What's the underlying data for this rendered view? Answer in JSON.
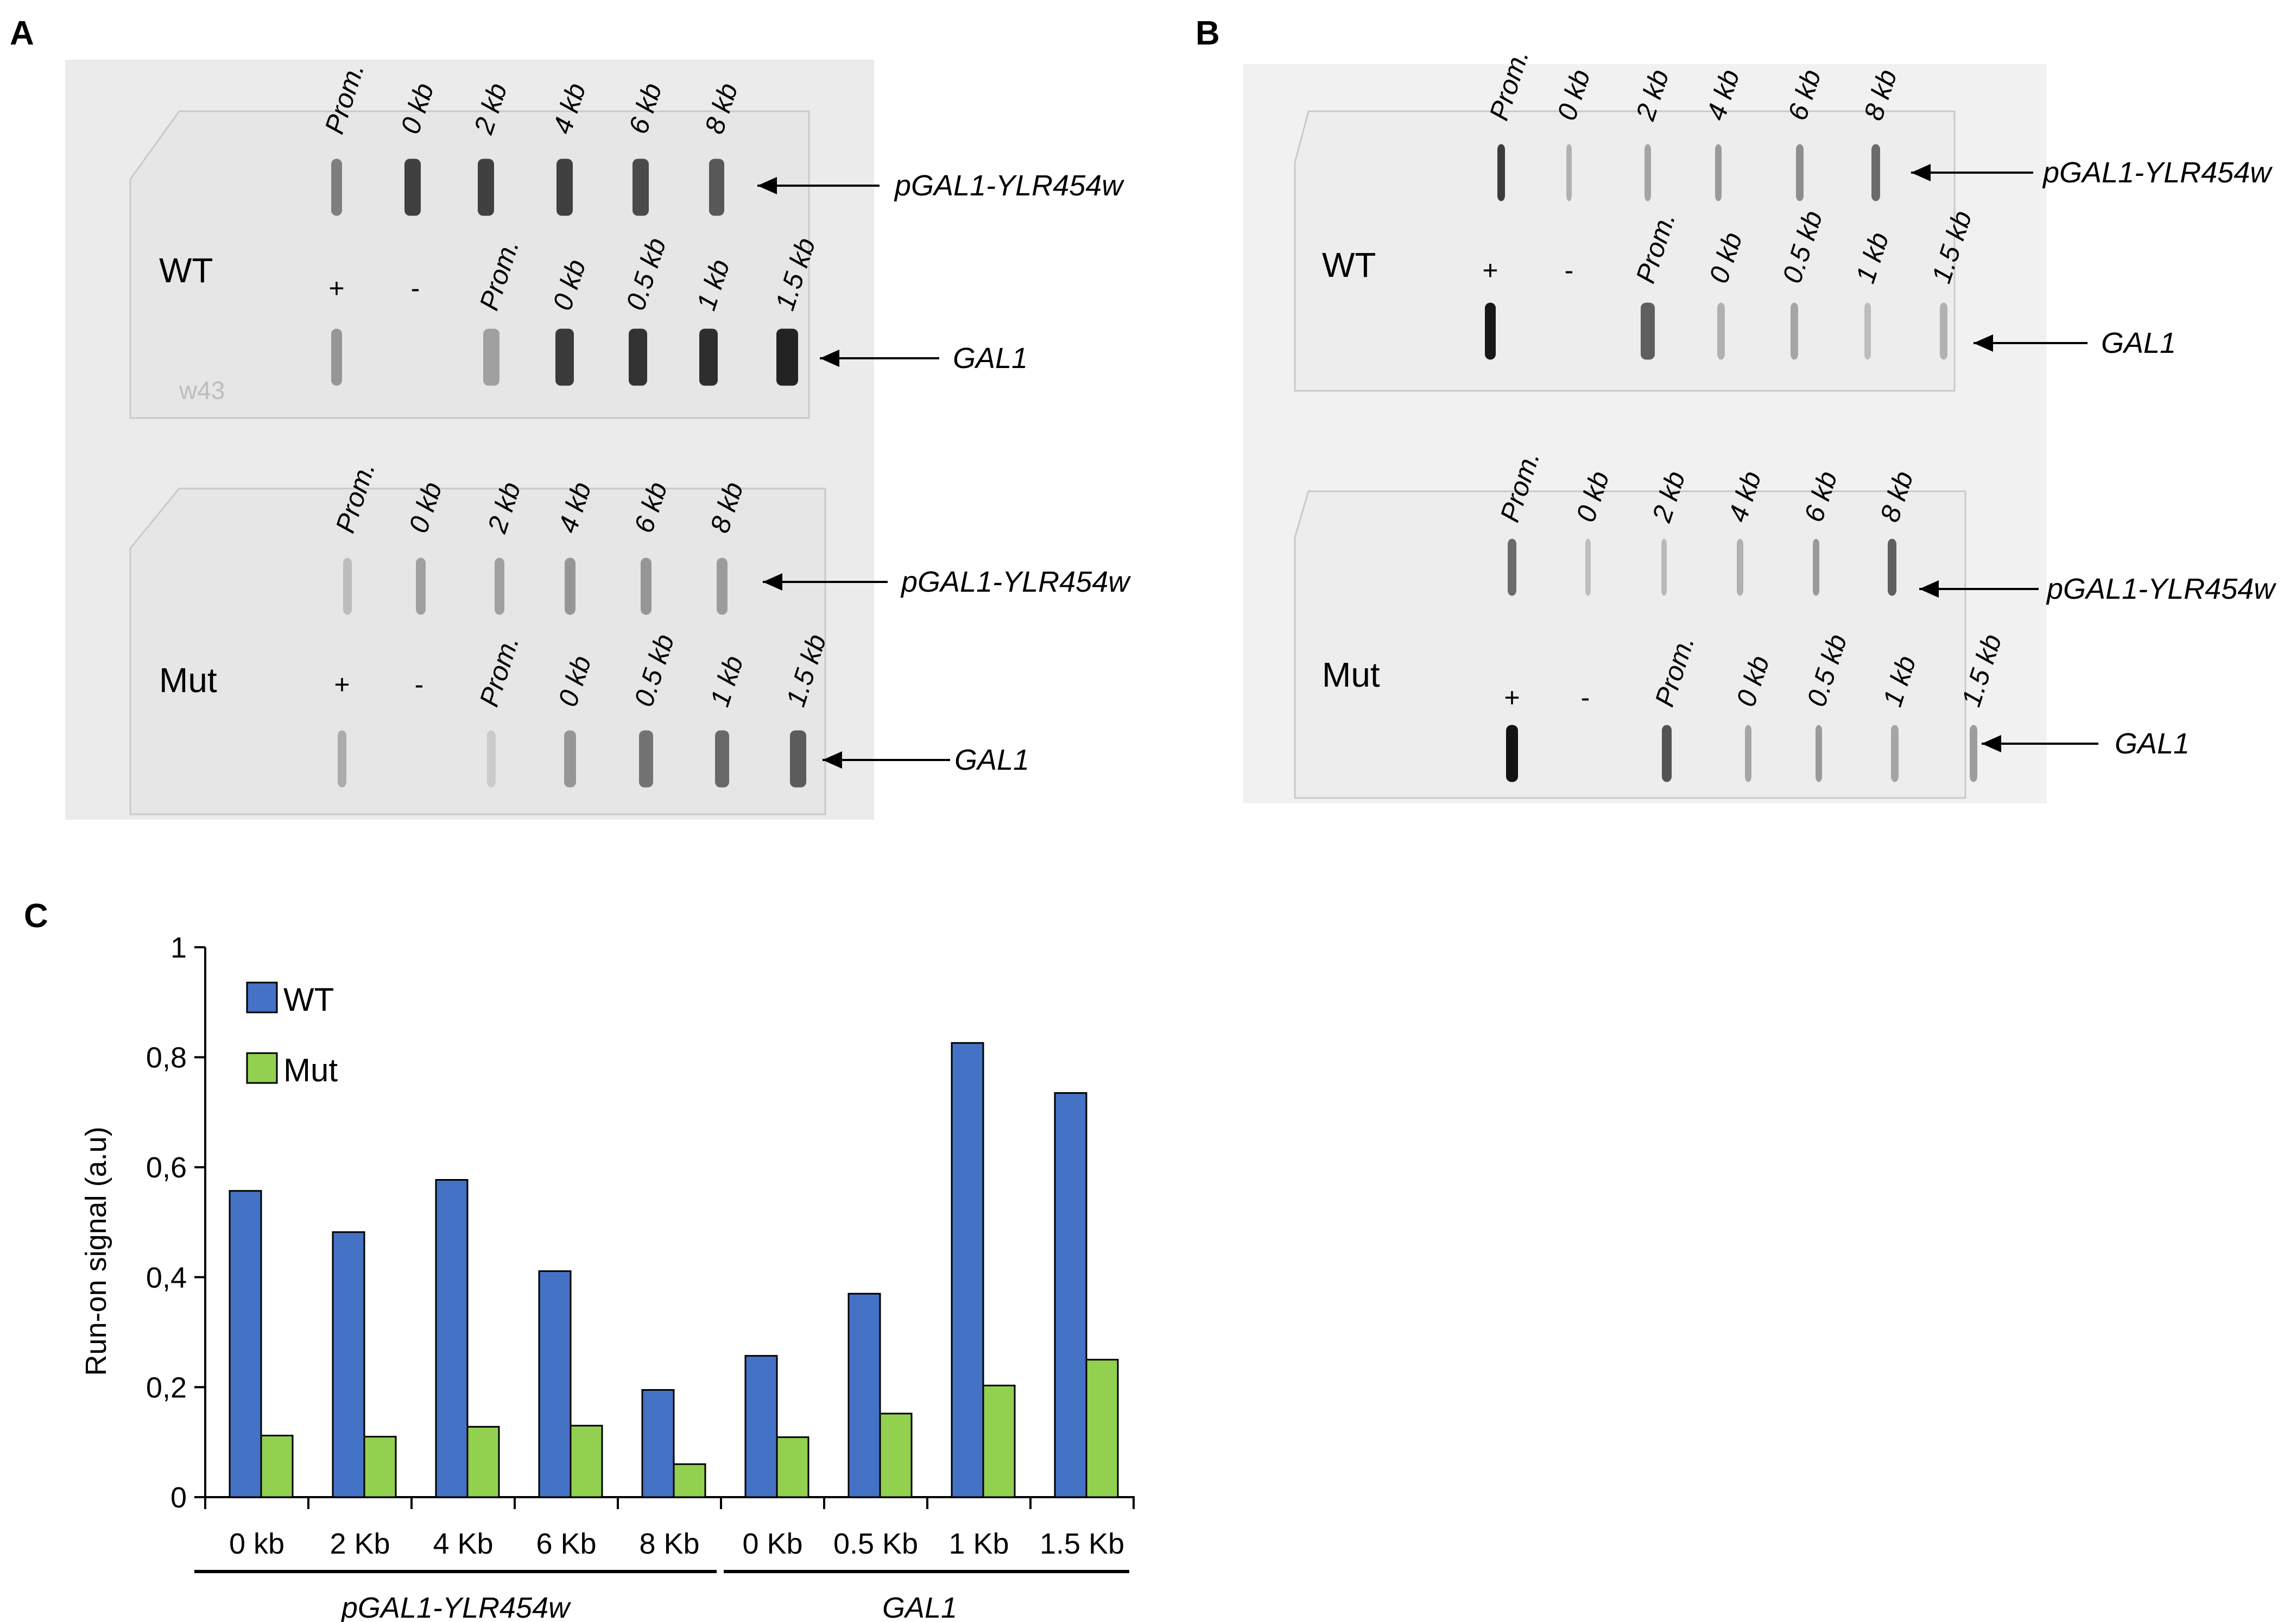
{
  "panel_letters": {
    "a": "A",
    "b": "B",
    "c": "C"
  },
  "blot": {
    "top_row_labels": [
      "Prom.",
      "0 kb",
      "2 kb",
      "4 kb",
      "6 kb",
      "8 kb"
    ],
    "bottom_row_labels": [
      "Prom.",
      "0 kb",
      "0.5 kb",
      "1 kb",
      "1.5 kb"
    ],
    "control_labels": [
      "+",
      "-"
    ],
    "gene_upper": "pGAL1-YLR454w",
    "gene_lower": "GAL1",
    "strain_wt": "WT",
    "strain_mut": "Mut",
    "membrane_mark": "w43"
  },
  "chart_data": {
    "type": "bar",
    "ylabel": "Run-on signal (a.u)",
    "ylim": [
      0,
      1
    ],
    "yticks": [
      "0",
      "0,2",
      "0,4",
      "0,6",
      "0,8",
      "1"
    ],
    "categories": [
      "0 kb",
      "2 Kb",
      "4 Kb",
      "6 Kb",
      "8 Kb",
      "0 Kb",
      "0.5 Kb",
      "1 Kb",
      "1.5 Kb"
    ],
    "groups": [
      {
        "label": "pGAL1-YLR454w",
        "categories": 5
      },
      {
        "label": "GAL1",
        "categories": 4
      }
    ],
    "series": [
      {
        "name": "WT",
        "color": "#4472C4",
        "values": [
          0.557,
          0.482,
          0.577,
          0.411,
          0.195,
          0.257,
          0.37,
          0.826,
          0.735
        ]
      },
      {
        "name": "Mut",
        "color": "#92D050",
        "values": [
          0.112,
          0.11,
          0.128,
          0.13,
          0.06,
          0.109,
          0.152,
          0.203,
          0.25
        ]
      }
    ],
    "legend_position": "top-left",
    "grid": false
  }
}
